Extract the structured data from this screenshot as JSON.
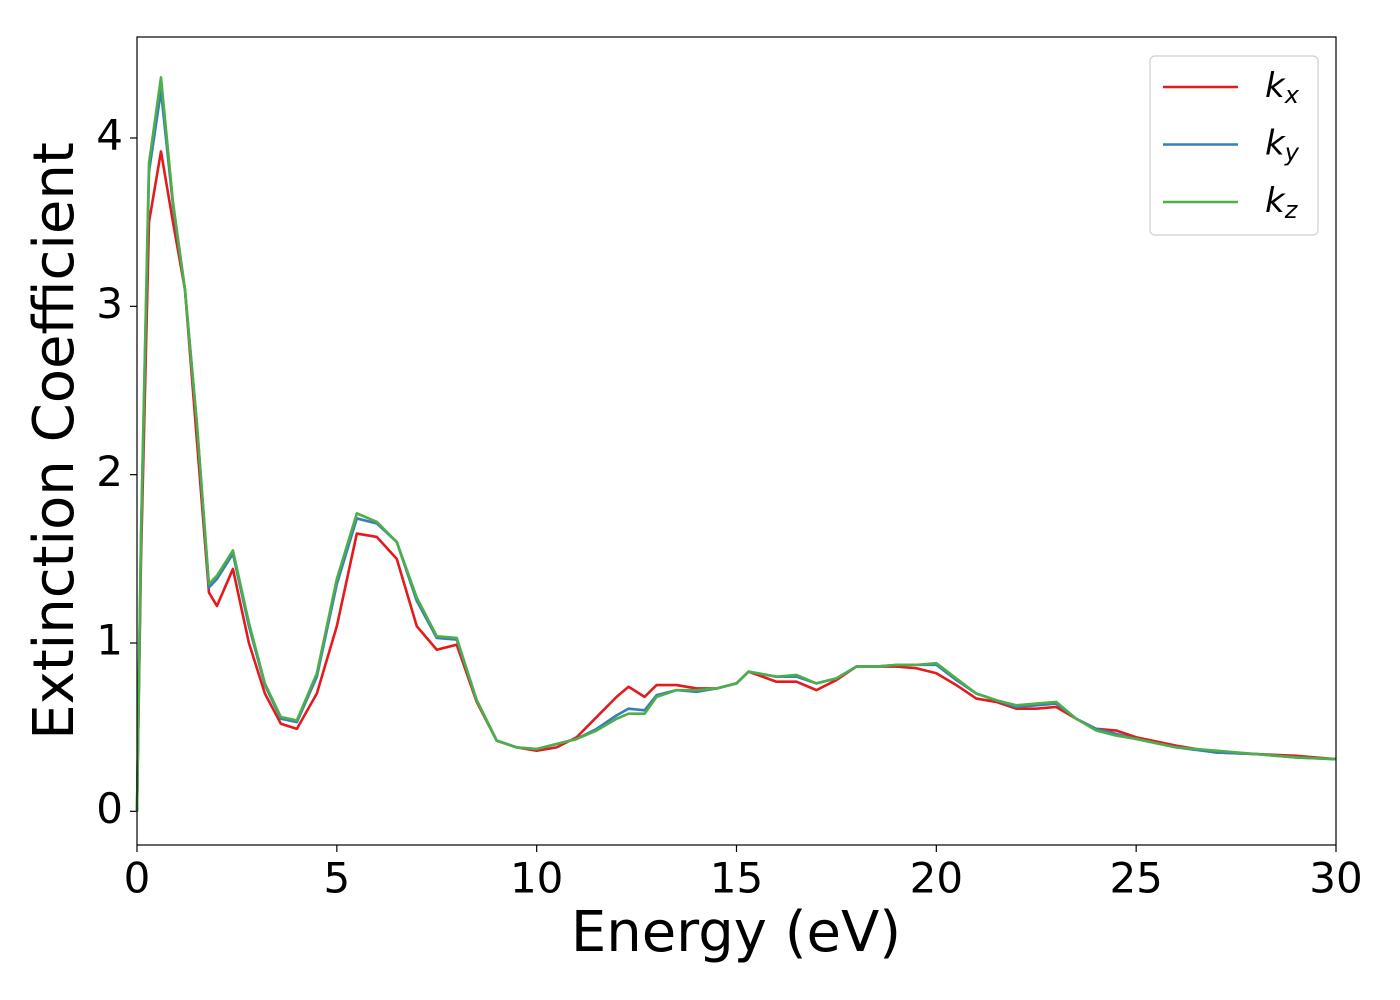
{
  "chart_data": {
    "type": "line",
    "xlabel": "Energy (eV)",
    "ylabel": "Extinction Coefficient",
    "x": [
      0,
      0.1,
      0.3,
      0.6,
      0.9,
      1.2,
      1.5,
      1.8,
      2.0,
      2.4,
      2.8,
      3.2,
      3.6,
      4.0,
      4.5,
      5.0,
      5.5,
      6.0,
      6.5,
      7.0,
      7.5,
      8.0,
      8.5,
      9.0,
      9.5,
      10,
      10.5,
      11,
      11.5,
      12,
      12.3,
      12.7,
      13,
      13.5,
      14,
      14.5,
      15,
      15.3,
      16,
      16.5,
      17,
      17.5,
      18,
      18.5,
      19,
      19.5,
      20,
      20.5,
      21,
      21.5,
      22,
      22.5,
      23,
      23.5,
      24,
      24.5,
      25,
      26,
      27,
      28,
      29,
      30
    ],
    "series": [
      {
        "name": "k_x",
        "color": "#e41a1c",
        "values": [
          0,
          1.5,
          3.5,
          3.92,
          3.5,
          3.1,
          2.2,
          1.3,
          1.22,
          1.44,
          1.0,
          0.7,
          0.52,
          0.49,
          0.7,
          1.1,
          1.65,
          1.63,
          1.5,
          1.1,
          0.96,
          0.99,
          0.65,
          0.42,
          0.38,
          0.36,
          0.38,
          0.44,
          0.56,
          0.68,
          0.74,
          0.68,
          0.75,
          0.75,
          0.73,
          0.73,
          0.76,
          0.83,
          0.77,
          0.77,
          0.72,
          0.78,
          0.86,
          0.86,
          0.86,
          0.85,
          0.82,
          0.75,
          0.67,
          0.65,
          0.61,
          0.61,
          0.62,
          0.55,
          0.49,
          0.48,
          0.44,
          0.39,
          0.35,
          0.34,
          0.33,
          0.31
        ]
      },
      {
        "name": "k_y",
        "color": "#377eb8",
        "values": [
          0,
          1.6,
          3.8,
          4.28,
          3.6,
          3.1,
          2.3,
          1.33,
          1.38,
          1.53,
          1.1,
          0.75,
          0.55,
          0.53,
          0.8,
          1.35,
          1.74,
          1.71,
          1.6,
          1.25,
          1.03,
          1.02,
          0.66,
          0.42,
          0.38,
          0.37,
          0.4,
          0.43,
          0.49,
          0.57,
          0.61,
          0.6,
          0.69,
          0.72,
          0.71,
          0.73,
          0.76,
          0.83,
          0.8,
          0.8,
          0.76,
          0.79,
          0.86,
          0.86,
          0.87,
          0.87,
          0.87,
          0.78,
          0.7,
          0.66,
          0.62,
          0.63,
          0.64,
          0.55,
          0.49,
          0.46,
          0.43,
          0.38,
          0.35,
          0.34,
          0.32,
          0.31
        ]
      },
      {
        "name": "k_z",
        "color": "#4daf4a",
        "values": [
          0,
          1.65,
          3.85,
          4.36,
          3.62,
          3.1,
          2.3,
          1.35,
          1.4,
          1.55,
          1.12,
          0.76,
          0.56,
          0.54,
          0.82,
          1.38,
          1.77,
          1.72,
          1.6,
          1.27,
          1.04,
          1.03,
          0.66,
          0.42,
          0.38,
          0.37,
          0.4,
          0.43,
          0.48,
          0.55,
          0.58,
          0.58,
          0.68,
          0.72,
          0.72,
          0.73,
          0.76,
          0.83,
          0.8,
          0.81,
          0.76,
          0.79,
          0.86,
          0.86,
          0.87,
          0.87,
          0.88,
          0.79,
          0.7,
          0.66,
          0.63,
          0.64,
          0.65,
          0.55,
          0.48,
          0.45,
          0.43,
          0.38,
          0.36,
          0.34,
          0.32,
          0.31
        ]
      }
    ],
    "xlim": [
      0,
      30
    ],
    "xticks": [
      0,
      5,
      10,
      15,
      20,
      25,
      30
    ],
    "ylim": [
      -0.2,
      4.6
    ],
    "yticks": [
      0,
      1,
      2,
      3,
      4
    ],
    "legend": "upper right"
  }
}
